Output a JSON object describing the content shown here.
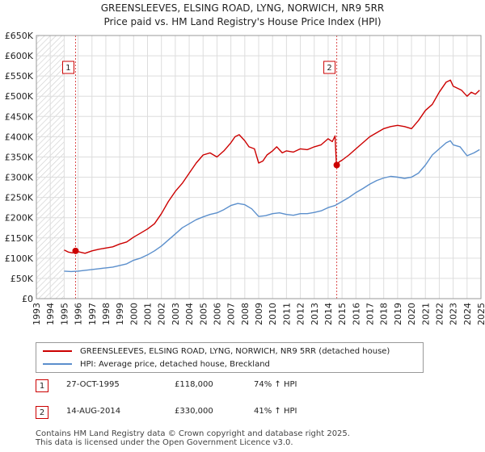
{
  "title_line1": "GREENSLEEVES, ELSING ROAD, LYNG, NORWICH, NR9 5RR",
  "title_line2": "Price paid vs. HM Land Registry's House Price Index (HPI)",
  "colors": {
    "property": "#cc0000",
    "hpi": "#5b8fcc",
    "hatch": "#cccccc",
    "grid": "#dddddd",
    "marker_line": "#cc0000"
  },
  "chart_data": {
    "type": "line",
    "title": "GREENSLEEVES, ELSING ROAD, LYNG, NORWICH, NR9 5RR - Price paid vs. HM Land Registry's House Price Index (HPI)",
    "xlabel": "",
    "ylabel": "",
    "xlim": [
      1993,
      2025
    ],
    "ylim": [
      0,
      650000
    ],
    "grid": true,
    "x_ticks": [
      "1993",
      "1994",
      "1995",
      "1996",
      "1997",
      "1998",
      "1999",
      "2000",
      "2001",
      "2002",
      "2003",
      "2004",
      "2005",
      "2006",
      "2007",
      "2008",
      "2009",
      "2010",
      "2011",
      "2012",
      "2013",
      "2014",
      "2015",
      "2016",
      "2017",
      "2018",
      "2019",
      "2020",
      "2021",
      "2022",
      "2023",
      "2024",
      "2025"
    ],
    "y_ticks": [
      {
        "value": 0,
        "label": "£0"
      },
      {
        "value": 50000,
        "label": "£50K"
      },
      {
        "value": 100000,
        "label": "£100K"
      },
      {
        "value": 150000,
        "label": "£150K"
      },
      {
        "value": 200000,
        "label": "£200K"
      },
      {
        "value": 250000,
        "label": "£250K"
      },
      {
        "value": 300000,
        "label": "£300K"
      },
      {
        "value": 350000,
        "label": "£350K"
      },
      {
        "value": 400000,
        "label": "£400K"
      },
      {
        "value": 450000,
        "label": "£450K"
      },
      {
        "value": 500000,
        "label": "£500K"
      },
      {
        "value": 550000,
        "label": "£550K"
      },
      {
        "value": 600000,
        "label": "£600K"
      },
      {
        "value": 650000,
        "label": "£650K"
      }
    ],
    "hatched_region": [
      1993,
      1995.0
    ],
    "series": [
      {
        "name": "GREENSLEEVES, ELSING ROAD, LYNG, NORWICH, NR9 5RR (detached house)",
        "color": "#cc0000",
        "x": [
          1995.0,
          1995.3,
          1995.6,
          1995.82,
          1996.0,
          1996.5,
          1997.0,
          1997.5,
          1998.0,
          1998.5,
          1999.0,
          1999.5,
          2000.0,
          2000.5,
          2001.0,
          2001.5,
          2002.0,
          2002.5,
          2003.0,
          2003.5,
          2004.0,
          2004.5,
          2005.0,
          2005.5,
          2006.0,
          2006.5,
          2007.0,
          2007.3,
          2007.6,
          2008.0,
          2008.3,
          2008.7,
          2009.0,
          2009.3,
          2009.6,
          2010.0,
          2010.3,
          2010.7,
          2011.0,
          2011.5,
          2012.0,
          2012.5,
          2013.0,
          2013.5,
          2014.0,
          2014.3,
          2014.5,
          2014.6,
          2014.8,
          2015.0,
          2015.5,
          2016.0,
          2016.5,
          2017.0,
          2017.5,
          2018.0,
          2018.5,
          2019.0,
          2019.5,
          2020.0,
          2020.5,
          2021.0,
          2021.5,
          2022.0,
          2022.5,
          2022.8,
          2023.0,
          2023.3,
          2023.6,
          2024.0,
          2024.3,
          2024.6,
          2024.9
        ],
        "y": [
          120000,
          115000,
          113000,
          118000,
          116000,
          112000,
          118000,
          122000,
          125000,
          128000,
          135000,
          140000,
          152000,
          162000,
          172000,
          185000,
          210000,
          240000,
          265000,
          285000,
          310000,
          335000,
          355000,
          360000,
          350000,
          365000,
          385000,
          400000,
          405000,
          390000,
          375000,
          370000,
          335000,
          340000,
          355000,
          365000,
          375000,
          360000,
          365000,
          362000,
          370000,
          368000,
          375000,
          380000,
          395000,
          388000,
          402000,
          330000,
          338000,
          342000,
          355000,
          370000,
          385000,
          400000,
          410000,
          420000,
          425000,
          428000,
          425000,
          420000,
          440000,
          465000,
          480000,
          510000,
          535000,
          540000,
          525000,
          520000,
          515000,
          500000,
          510000,
          505000,
          515000
        ]
      },
      {
        "name": "HPI: Average price, detached house, Breckland",
        "color": "#5b8fcc",
        "x": [
          1995.0,
          1995.5,
          1996.0,
          1996.5,
          1997.0,
          1997.5,
          1998.0,
          1998.5,
          1999.0,
          1999.5,
          2000.0,
          2000.5,
          2001.0,
          2001.5,
          2002.0,
          2002.5,
          2003.0,
          2003.5,
          2004.0,
          2004.5,
          2005.0,
          2005.5,
          2006.0,
          2006.5,
          2007.0,
          2007.5,
          2008.0,
          2008.5,
          2009.0,
          2009.5,
          2010.0,
          2010.5,
          2011.0,
          2011.5,
          2012.0,
          2012.5,
          2013.0,
          2013.5,
          2014.0,
          2014.5,
          2015.0,
          2015.5,
          2016.0,
          2016.5,
          2017.0,
          2017.5,
          2018.0,
          2018.5,
          2019.0,
          2019.5,
          2020.0,
          2020.5,
          2021.0,
          2021.5,
          2022.0,
          2022.5,
          2022.8,
          2023.0,
          2023.5,
          2024.0,
          2024.5,
          2024.9
        ],
        "y": [
          68000,
          67000,
          68000,
          70000,
          72000,
          74000,
          76000,
          78000,
          82000,
          86000,
          95000,
          100000,
          108000,
          118000,
          130000,
          145000,
          160000,
          175000,
          185000,
          195000,
          202000,
          208000,
          212000,
          220000,
          230000,
          235000,
          232000,
          222000,
          203000,
          205000,
          210000,
          212000,
          208000,
          206000,
          210000,
          210000,
          213000,
          217000,
          225000,
          230000,
          240000,
          250000,
          262000,
          272000,
          283000,
          292000,
          298000,
          302000,
          300000,
          297000,
          300000,
          310000,
          330000,
          355000,
          370000,
          385000,
          390000,
          380000,
          375000,
          353000,
          360000,
          368000
        ]
      }
    ],
    "annotations": [
      {
        "id": "1",
        "x": 1995.82,
        "y": 118000,
        "label": "1"
      },
      {
        "id": "2",
        "x": 2014.62,
        "y": 330000,
        "label": "2"
      }
    ]
  },
  "legend": {
    "property_label": "GREENSLEEVES, ELSING ROAD, LYNG, NORWICH, NR9 5RR (detached house)",
    "hpi_label": "HPI: Average price, detached house, Breckland"
  },
  "transactions": [
    {
      "num": "1",
      "date": "27-OCT-1995",
      "price": "£118,000",
      "hpi": "74% ↑ HPI"
    },
    {
      "num": "2",
      "date": "14-AUG-2014",
      "price": "£330,000",
      "hpi": "41% ↑ HPI"
    }
  ],
  "footer_line1": "Contains HM Land Registry data © Crown copyright and database right 2025.",
  "footer_line2": "This data is licensed under the Open Government Licence v3.0."
}
